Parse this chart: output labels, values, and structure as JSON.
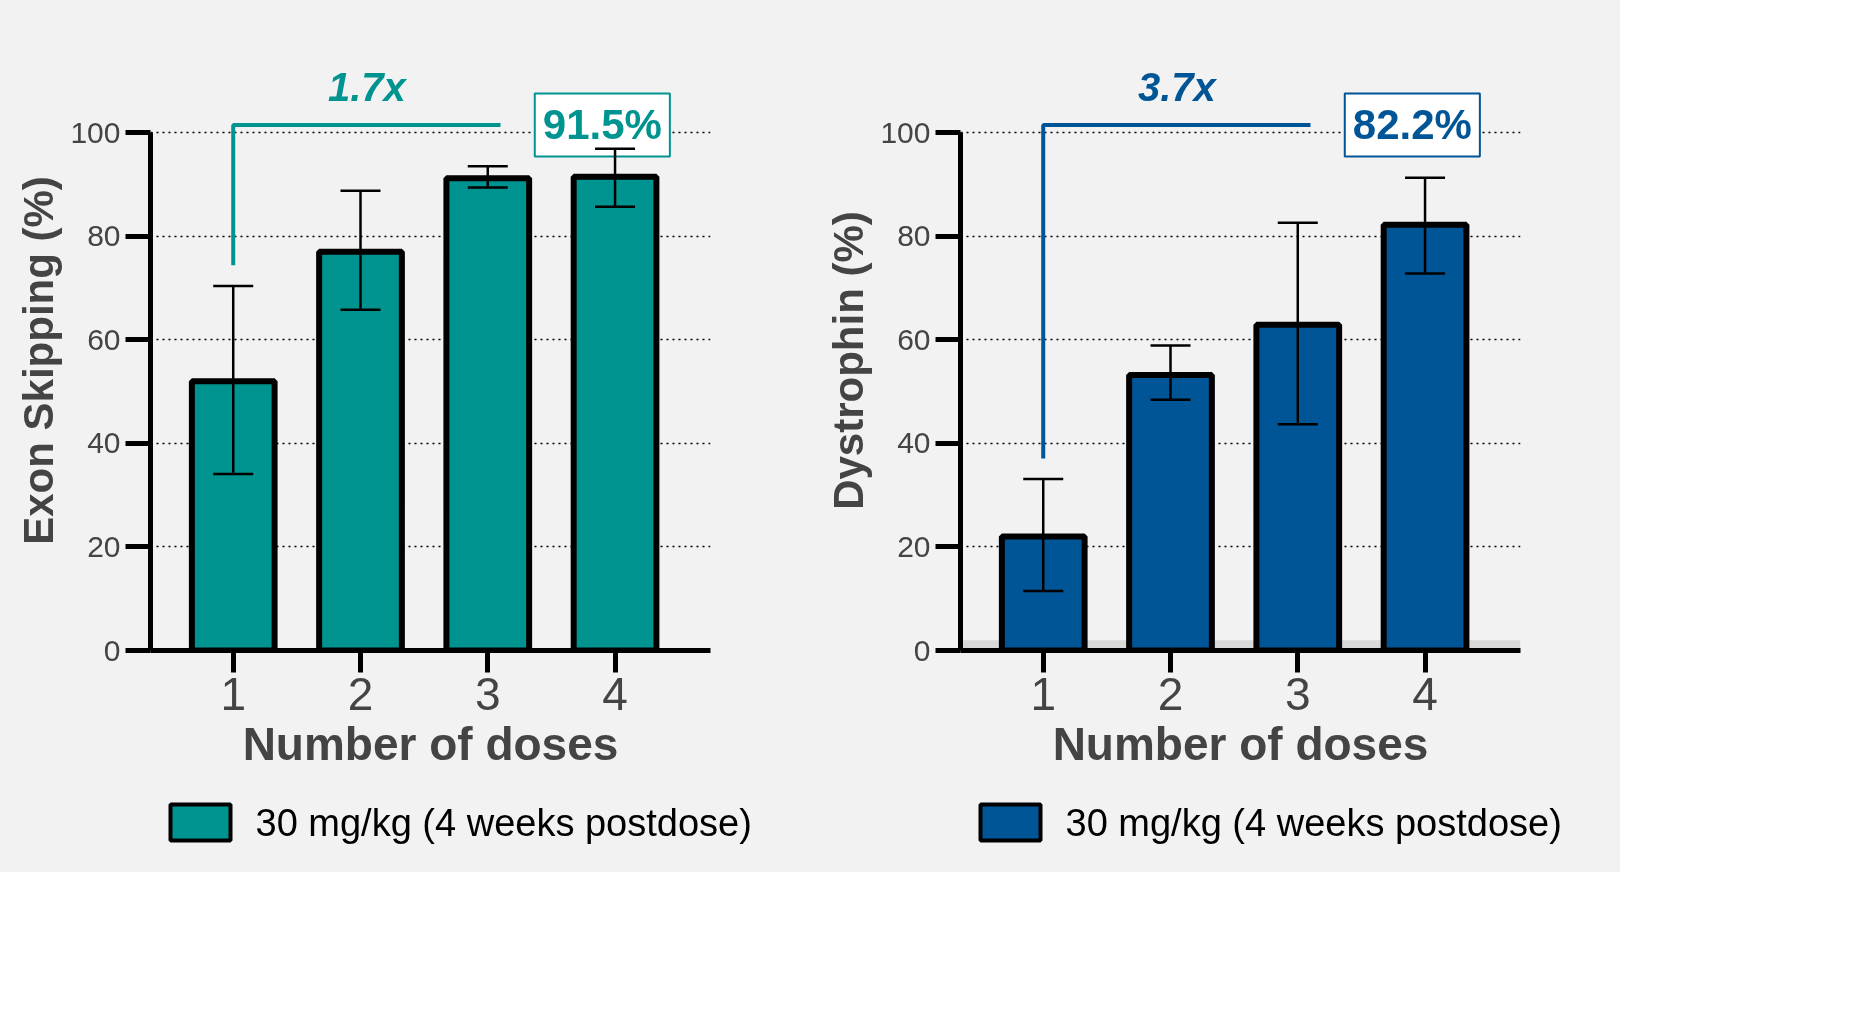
{
  "chart_data": [
    {
      "type": "bar",
      "xlabel": "Number of doses",
      "ylabel": "Exon Skipping (%)",
      "categories": [
        "1",
        "2",
        "3",
        "4"
      ],
      "series": [
        {
          "name": "30 mg/kg (4 weeks postdose)",
          "color": "#009491",
          "values": [
            52,
            77,
            91.2,
            91.5
          ],
          "errors": [
            [
              34.1,
              70.4
            ],
            [
              65.8,
              88.8
            ],
            [
              89.4,
              93.5
            ],
            [
              85.7,
              96.9
            ]
          ]
        }
      ],
      "ylim": [
        0,
        100
      ],
      "yticks": [
        0,
        20,
        40,
        60,
        80,
        100
      ],
      "grid": "y",
      "legend": "bottom",
      "annotations": [
        "1.7x",
        "91.5%"
      ]
    },
    {
      "type": "bar",
      "xlabel": "Number of doses",
      "ylabel": "Dystrophin (%)",
      "categories": [
        "1",
        "2",
        "3",
        "4"
      ],
      "series": [
        {
          "name": "30 mg/kg (4 weeks postdose)",
          "color": "#005596",
          "values": [
            22,
            53.2,
            62.9,
            82.2
          ],
          "errors": [
            [
              11.5,
              33.1
            ],
            [
              48.4,
              58.9
            ],
            [
              43.7,
              82.6
            ],
            [
              72.8,
              91.3
            ]
          ]
        }
      ],
      "ylim": [
        0,
        100
      ],
      "yticks": [
        0,
        20,
        40,
        60,
        80,
        100
      ],
      "grid": "y",
      "legend": "bottom",
      "bands": [
        {
          "axis": "y",
          "from": 0,
          "to": 2,
          "color": "#d9d9d9"
        }
      ],
      "annotations": [
        "3.7x",
        "82.2%"
      ]
    }
  ]
}
